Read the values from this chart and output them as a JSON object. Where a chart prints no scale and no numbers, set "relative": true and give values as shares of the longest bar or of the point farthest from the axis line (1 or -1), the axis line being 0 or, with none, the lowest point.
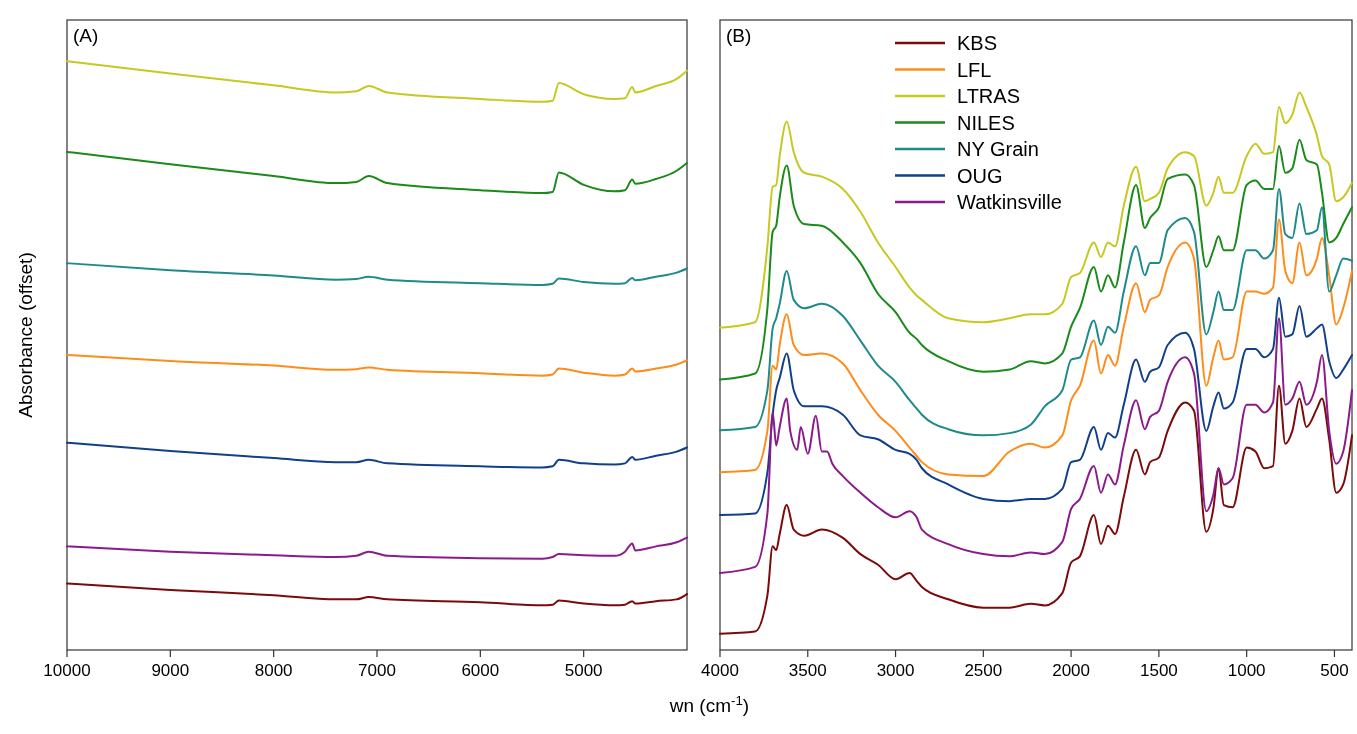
{
  "chart_data": [
    {
      "type": "line",
      "title": "(A)",
      "ylabel": "Absorbance (offset)",
      "relative": true,
      "legend": false,
      "x": [
        10000,
        9000,
        8000,
        7400,
        7200,
        7080,
        6900,
        6000,
        5400,
        5300,
        5240,
        5000,
        4700,
        4600,
        4530,
        4500,
        4300,
        4100,
        4000
      ],
      "xlim": [
        10000,
        4000
      ],
      "xticks": [
        10000,
        9000,
        8000,
        7000,
        6000,
        5000
      ],
      "series": [
        {
          "color": "#7b0a0a",
          "values": [
            0.113,
            0.102,
            0.093,
            0.086,
            0.086,
            0.09,
            0.086,
            0.081,
            0.076,
            0.077,
            0.084,
            0.079,
            0.076,
            0.077,
            0.083,
            0.079,
            0.083,
            0.086,
            0.095
          ]
        },
        {
          "color": "#ff8c1a",
          "values": [
            0.501,
            0.491,
            0.483,
            0.476,
            0.477,
            0.48,
            0.476,
            0.47,
            0.466,
            0.468,
            0.478,
            0.471,
            0.466,
            0.468,
            0.478,
            0.473,
            0.478,
            0.485,
            0.492
          ]
        },
        {
          "color": "#c6c922",
          "values": [
            1.0,
            0.979,
            0.959,
            0.947,
            0.949,
            0.958,
            0.947,
            0.936,
            0.931,
            0.933,
            0.963,
            0.944,
            0.936,
            0.937,
            0.956,
            0.947,
            0.958,
            0.97,
            0.984
          ]
        },
        {
          "color": "#1a8a1a",
          "values": [
            0.846,
            0.825,
            0.805,
            0.793,
            0.795,
            0.805,
            0.793,
            0.781,
            0.776,
            0.778,
            0.811,
            0.79,
            0.779,
            0.781,
            0.799,
            0.792,
            0.8,
            0.814,
            0.827
          ]
        },
        {
          "color": "#1f8a8a",
          "values": [
            0.657,
            0.645,
            0.636,
            0.629,
            0.63,
            0.634,
            0.629,
            0.623,
            0.62,
            0.622,
            0.631,
            0.625,
            0.622,
            0.623,
            0.632,
            0.628,
            0.634,
            0.641,
            0.648
          ]
        },
        {
          "color": "#123f8a",
          "values": [
            0.352,
            0.338,
            0.326,
            0.319,
            0.319,
            0.323,
            0.317,
            0.312,
            0.31,
            0.312,
            0.323,
            0.317,
            0.315,
            0.317,
            0.328,
            0.323,
            0.33,
            0.337,
            0.344
          ]
        },
        {
          "color": "#8b1a8b",
          "values": [
            0.176,
            0.167,
            0.161,
            0.158,
            0.16,
            0.167,
            0.16,
            0.156,
            0.155,
            0.158,
            0.163,
            0.161,
            0.16,
            0.167,
            0.181,
            0.169,
            0.176,
            0.183,
            0.191
          ]
        }
      ]
    },
    {
      "type": "line",
      "title": "(B)",
      "xlabel": "wn (cm$^{-1}$)",
      "relative": true,
      "legend": "top",
      "x": [
        4000,
        3800,
        3730,
        3700,
        3680,
        3660,
        3620,
        3580,
        3520,
        3420,
        3300,
        3200,
        3100,
        3000,
        2920,
        2880,
        2850,
        2700,
        2500,
        2350,
        2230,
        2150,
        2050,
        2000,
        1950,
        1870,
        1830,
        1790,
        1750,
        1700,
        1630,
        1580,
        1550,
        1500,
        1450,
        1350,
        1300,
        1230,
        1190,
        1160,
        1130,
        1080,
        1000,
        950,
        900,
        850,
        816,
        780,
        740,
        699,
        660,
        600,
        571,
        530,
        490,
        450,
        400
      ],
      "xlim": [
        4000,
        400
      ],
      "xticks": [
        4000,
        3500,
        3000,
        2500,
        2000,
        1500,
        1000,
        500
      ],
      "series": [
        {
          "name": "KBS",
          "color": "#7b0a0a",
          "values": [
            0.029,
            0.033,
            0.098,
            0.186,
            0.179,
            0.208,
            0.26,
            0.216,
            0.205,
            0.216,
            0.201,
            0.172,
            0.153,
            0.127,
            0.138,
            0.124,
            0.113,
            0.091,
            0.076,
            0.076,
            0.083,
            0.08,
            0.102,
            0.157,
            0.168,
            0.242,
            0.19,
            0.223,
            0.208,
            0.275,
            0.359,
            0.315,
            0.337,
            0.345,
            0.393,
            0.444,
            0.429,
            0.212,
            0.253,
            0.326,
            0.26,
            0.256,
            0.363,
            0.356,
            0.326,
            0.33,
            0.474,
            0.37,
            0.393,
            0.451,
            0.4,
            0.433,
            0.451,
            0.378,
            0.282,
            0.297,
            0.385
          ]
        },
        {
          "name": "LFL",
          "color": "#ff8c1a",
          "values": [
            0.319,
            0.323,
            0.393,
            0.51,
            0.503,
            0.547,
            0.602,
            0.547,
            0.529,
            0.532,
            0.514,
            0.466,
            0.422,
            0.393,
            0.363,
            0.348,
            0.337,
            0.315,
            0.312,
            0.356,
            0.37,
            0.363,
            0.385,
            0.448,
            0.474,
            0.555,
            0.496,
            0.529,
            0.51,
            0.58,
            0.658,
            0.606,
            0.628,
            0.636,
            0.687,
            0.731,
            0.702,
            0.474,
            0.525,
            0.555,
            0.521,
            0.525,
            0.643,
            0.643,
            0.639,
            0.65,
            0.772,
            0.68,
            0.658,
            0.731,
            0.672,
            0.702,
            0.739,
            0.672,
            0.584,
            0.613,
            0.68
          ]
        },
        {
          "name": "LTRAS",
          "color": "#c6c922",
          "values": [
            0.578,
            0.588,
            0.724,
            0.831,
            0.834,
            0.886,
            0.948,
            0.893,
            0.856,
            0.849,
            0.827,
            0.786,
            0.731,
            0.687,
            0.65,
            0.636,
            0.628,
            0.595,
            0.588,
            0.595,
            0.602,
            0.602,
            0.621,
            0.669,
            0.676,
            0.731,
            0.705,
            0.731,
            0.724,
            0.797,
            0.867,
            0.805,
            0.809,
            0.82,
            0.864,
            0.893,
            0.886,
            0.797,
            0.82,
            0.849,
            0.82,
            0.82,
            0.886,
            0.908,
            0.89,
            0.893,
            0.974,
            0.945,
            0.96,
            1.0,
            0.974,
            0.923,
            0.886,
            0.871,
            0.805,
            0.812,
            0.838
          ]
        },
        {
          "name": "NILES",
          "color": "#1a8a1a",
          "values": [
            0.485,
            0.496,
            0.613,
            0.75,
            0.761,
            0.812,
            0.869,
            0.797,
            0.764,
            0.761,
            0.731,
            0.694,
            0.639,
            0.606,
            0.569,
            0.558,
            0.547,
            0.518,
            0.499,
            0.503,
            0.518,
            0.514,
            0.532,
            0.58,
            0.613,
            0.687,
            0.643,
            0.672,
            0.65,
            0.731,
            0.834,
            0.757,
            0.775,
            0.794,
            0.845,
            0.853,
            0.834,
            0.687,
            0.717,
            0.742,
            0.717,
            0.717,
            0.834,
            0.842,
            0.827,
            0.827,
            0.904,
            0.856,
            0.864,
            0.915,
            0.879,
            0.871,
            0.82,
            0.731,
            0.739,
            0.764,
            0.794
          ]
        },
        {
          "name": "NY Grain",
          "color": "#1f8a8a",
          "values": [
            0.394,
            0.4,
            0.466,
            0.577,
            0.595,
            0.621,
            0.68,
            0.628,
            0.613,
            0.621,
            0.599,
            0.555,
            0.51,
            0.481,
            0.448,
            0.433,
            0.422,
            0.396,
            0.385,
            0.389,
            0.404,
            0.437,
            0.466,
            0.521,
            0.525,
            0.591,
            0.547,
            0.58,
            0.569,
            0.643,
            0.724,
            0.672,
            0.694,
            0.694,
            0.753,
            0.775,
            0.75,
            0.566,
            0.606,
            0.643,
            0.61,
            0.61,
            0.717,
            0.717,
            0.702,
            0.717,
            0.827,
            0.746,
            0.739,
            0.801,
            0.746,
            0.753,
            0.794,
            0.643,
            0.672,
            0.702,
            0.698
          ]
        },
        {
          "name": "OUG",
          "color": "#123f8a",
          "values": [
            0.242,
            0.245,
            0.319,
            0.422,
            0.466,
            0.488,
            0.532,
            0.466,
            0.437,
            0.437,
            0.422,
            0.385,
            0.378,
            0.359,
            0.352,
            0.341,
            0.326,
            0.297,
            0.271,
            0.267,
            0.271,
            0.271,
            0.289,
            0.337,
            0.341,
            0.4,
            0.359,
            0.389,
            0.381,
            0.44,
            0.521,
            0.481,
            0.499,
            0.507,
            0.547,
            0.569,
            0.54,
            0.393,
            0.437,
            0.462,
            0.433,
            0.444,
            0.54,
            0.54,
            0.525,
            0.54,
            0.632,
            0.562,
            0.566,
            0.617,
            0.562,
            0.577,
            0.584,
            0.518,
            0.488,
            0.503,
            0.529
          ]
        },
        {
          "name": "Watkinsville",
          "color": "#8b1a8b",
          "x": [
            4000,
            3800,
            3730,
            3700,
            3680,
            3660,
            3620,
            3600,
            3560,
            3540,
            3500,
            3454,
            3420,
            3390,
            3360,
            3300,
            3200,
            3100,
            3000,
            2920,
            2880,
            2850,
            2700,
            2500,
            2350,
            2230,
            2150,
            2050,
            2000,
            1950,
            1870,
            1830,
            1790,
            1750,
            1700,
            1630,
            1580,
            1550,
            1500,
            1450,
            1350,
            1300,
            1230,
            1190,
            1160,
            1130,
            1080,
            1000,
            950,
            900,
            850,
            816,
            780,
            740,
            699,
            660,
            600,
            571,
            530,
            490,
            450,
            400
          ],
          "values": [
            0.138,
            0.149,
            0.245,
            0.426,
            0.367,
            0.4,
            0.451,
            0.393,
            0.359,
            0.4,
            0.352,
            0.42,
            0.356,
            0.356,
            0.334,
            0.312,
            0.282,
            0.256,
            0.238,
            0.249,
            0.238,
            0.216,
            0.19,
            0.172,
            0.168,
            0.175,
            0.172,
            0.194,
            0.253,
            0.271,
            0.33,
            0.282,
            0.315,
            0.297,
            0.367,
            0.448,
            0.396,
            0.418,
            0.429,
            0.481,
            0.525,
            0.496,
            0.249,
            0.278,
            0.326,
            0.297,
            0.308,
            0.44,
            0.44,
            0.426,
            0.444,
            0.595,
            0.44,
            0.451,
            0.481,
            0.44,
            0.481,
            0.529,
            0.393,
            0.334,
            0.356,
            0.466
          ]
        }
      ]
    }
  ]
}
